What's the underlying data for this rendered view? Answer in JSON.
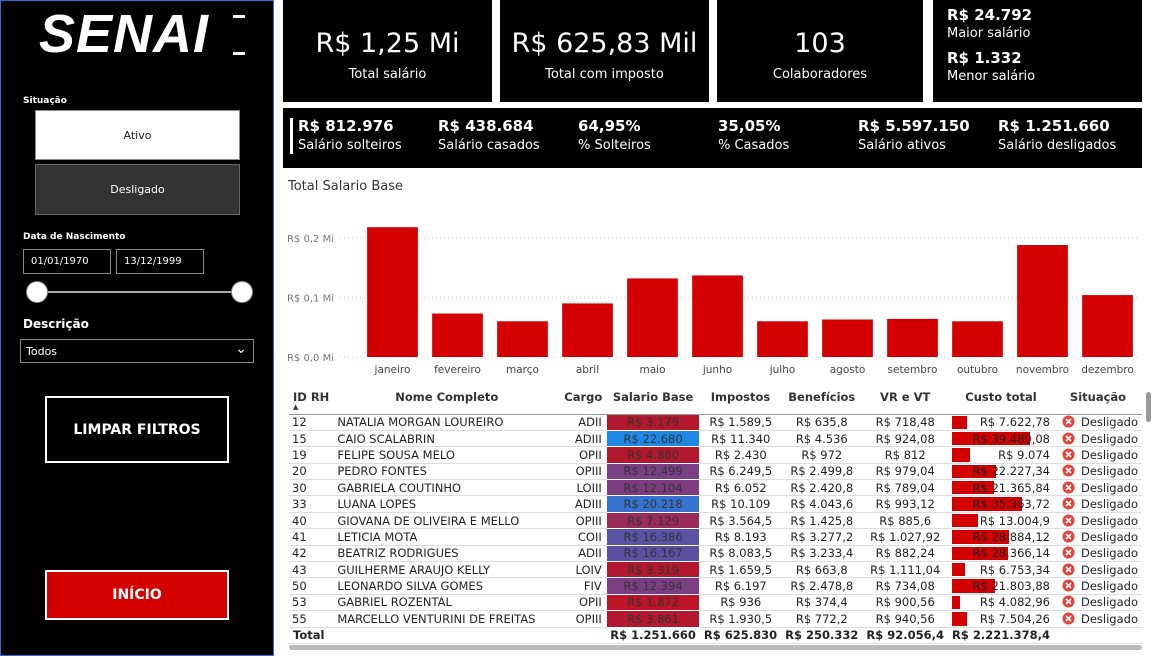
{
  "sidebar": {
    "logo": "SENAI",
    "situacao_label": "Situação",
    "situacao_options": [
      "Ativo",
      "Desligado"
    ],
    "nascimento_label": "Data de Nascimento",
    "date_from": "01/01/1970",
    "date_to": "13/12/1999",
    "descricao_label": "Descrição",
    "descricao_value": "Todos",
    "clear_button": "LIMPAR FILTROS",
    "home_button": "INÍCIO"
  },
  "cards": [
    {
      "value": "R$ 1,25 Mi",
      "label": "Total salário"
    },
    {
      "value": "R$ 625,83 Mil",
      "label": "Total com imposto"
    },
    {
      "value": "103",
      "label": "Colaboradores"
    }
  ],
  "salary_card": [
    {
      "value": "R$ 24.792",
      "label": "Maior salário"
    },
    {
      "value": "R$ 1.332",
      "label": "Menor salário"
    }
  ],
  "kpis": [
    {
      "value": "R$ 812.976",
      "label": "Salário solteiros"
    },
    {
      "value": "R$ 438.684",
      "label": "Salário casados"
    },
    {
      "value": "64,95%",
      "label": "% Solteiros"
    },
    {
      "value": "35,05%",
      "label": "% Casados"
    },
    {
      "value": "R$ 5.597.150",
      "label": "Salário ativos"
    },
    {
      "value": "R$ 1.251.660",
      "label": "Salário desligados"
    }
  ],
  "chart_data": {
    "type": "bar",
    "title": "Total Salario Base",
    "categories": [
      "janeiro",
      "fevereiro",
      "março",
      "abril",
      "maio",
      "junho",
      "julho",
      "agosto",
      "setembro",
      "outubro",
      "novembro",
      "dezembro"
    ],
    "values": [
      0.218,
      0.073,
      0.06,
      0.09,
      0.132,
      0.137,
      0.06,
      0.063,
      0.064,
      0.06,
      0.188,
      0.104
    ],
    "color": "#d40000",
    "ylim": [
      0,
      0.22
    ],
    "yticks": [
      {
        "value": 0,
        "label": "R$ 0,0 Mi"
      },
      {
        "value": 0.1,
        "label": "R$ 0,1 Mi"
      },
      {
        "value": 0.2,
        "label": "R$ 0,2 Mi"
      }
    ],
    "grid": true
  },
  "table": {
    "columns": [
      "ID RH",
      "Nome Completo",
      "Cargo",
      "Salario Base",
      "Impostos",
      "Benefícios",
      "VR e VT",
      "Custo total",
      "Situação"
    ],
    "rows": [
      [
        "12",
        "NATALIA MORGAN LOUREIRO",
        "ADII",
        "R$ 3.179",
        "R$ 1.589,5",
        "R$ 635,8",
        "R$ 718,48",
        "R$ 7.622,78",
        "Desligado"
      ],
      [
        "15",
        "CAIO SCALABRIN",
        "ADIII",
        "R$ 22.680",
        "R$ 11.340",
        "R$ 4.536",
        "R$ 924,08",
        "R$ 39.480,08",
        "Desligado"
      ],
      [
        "19",
        "FELIPE SOUSA MELO",
        "OPII",
        "R$ 4.860",
        "R$ 2.430",
        "R$ 972",
        "R$ 812",
        "R$ 9.074",
        "Desligado"
      ],
      [
        "20",
        "PEDRO FONTES",
        "OPIII",
        "R$ 12.499",
        "R$ 6.249,5",
        "R$ 2.499,8",
        "R$ 979,04",
        "R$ 22.227,34",
        "Desligado"
      ],
      [
        "30",
        "GABRIELA COUTINHO",
        "LOIII",
        "R$ 12.104",
        "R$ 6.052",
        "R$ 2.420,8",
        "R$ 789,04",
        "R$ 21.365,84",
        "Desligado"
      ],
      [
        "33",
        "LUANA LOPES",
        "ADIII",
        "R$ 20.218",
        "R$ 10.109",
        "R$ 4.043,6",
        "R$ 993,12",
        "R$ 35.363,72",
        "Desligado"
      ],
      [
        "40",
        "GIOVANA DE OLIVEIRA E MELLO",
        "OPIII",
        "R$ 7.129",
        "R$ 3.564,5",
        "R$ 1.425,8",
        "R$ 885,6",
        "R$ 13.004,9",
        "Desligado"
      ],
      [
        "41",
        "LETICIA MOTA",
        "COII",
        "R$ 16.386",
        "R$ 8.193",
        "R$ 3.277,2",
        "R$ 1.027,92",
        "R$ 28.884,12",
        "Desligado"
      ],
      [
        "42",
        "BEATRIZ RODRIGUES",
        "ADII",
        "R$ 16.167",
        "R$ 8.083,5",
        "R$ 3.233,4",
        "R$ 882,24",
        "R$ 28.366,14",
        "Desligado"
      ],
      [
        "43",
        "GUILHERME ARAUJO KELLY",
        "LOIV",
        "R$ 3.319",
        "R$ 1.659,5",
        "R$ 663,8",
        "R$ 1.111,04",
        "R$ 6.753,34",
        "Desligado"
      ],
      [
        "50",
        "LEONARDO SILVA GOMES",
        "FIV",
        "R$ 12.394",
        "R$ 6.197",
        "R$ 2.478,8",
        "R$ 734,08",
        "R$ 21.803,88",
        "Desligado"
      ],
      [
        "53",
        "GABRIEL ROZENTAL",
        "OPII",
        "R$ 1.872",
        "R$ 936",
        "R$ 374,4",
        "R$ 900,56",
        "R$ 4.082,96",
        "Desligado"
      ],
      [
        "55",
        "MARCELLO VENTURINI DE FREITAS",
        "OPIII",
        "R$ 3.861",
        "R$ 1.930,5",
        "R$ 772,2",
        "R$ 940,56",
        "R$ 7.504,26",
        "Desligado"
      ]
    ],
    "salario_base_colors": [
      "#b3182e",
      "#1e88e5",
      "#b3182e",
      "#7a3f85",
      "#7e3c80",
      "#3474cf",
      "#9a2c5a",
      "#5a52a5",
      "#5c50a2",
      "#b3182e",
      "#7c3e83",
      "#bd1428",
      "#b3182e"
    ],
    "custo_bar_color": "#d40000",
    "total": {
      "label": "Total",
      "salario_base": "R$ 1.251.660",
      "impostos": "R$ 625.830",
      "beneficios": "R$ 250.332",
      "vr_vt": "R$ 92.056,4",
      "custo_total": "R$ 2.221.378,4"
    }
  }
}
